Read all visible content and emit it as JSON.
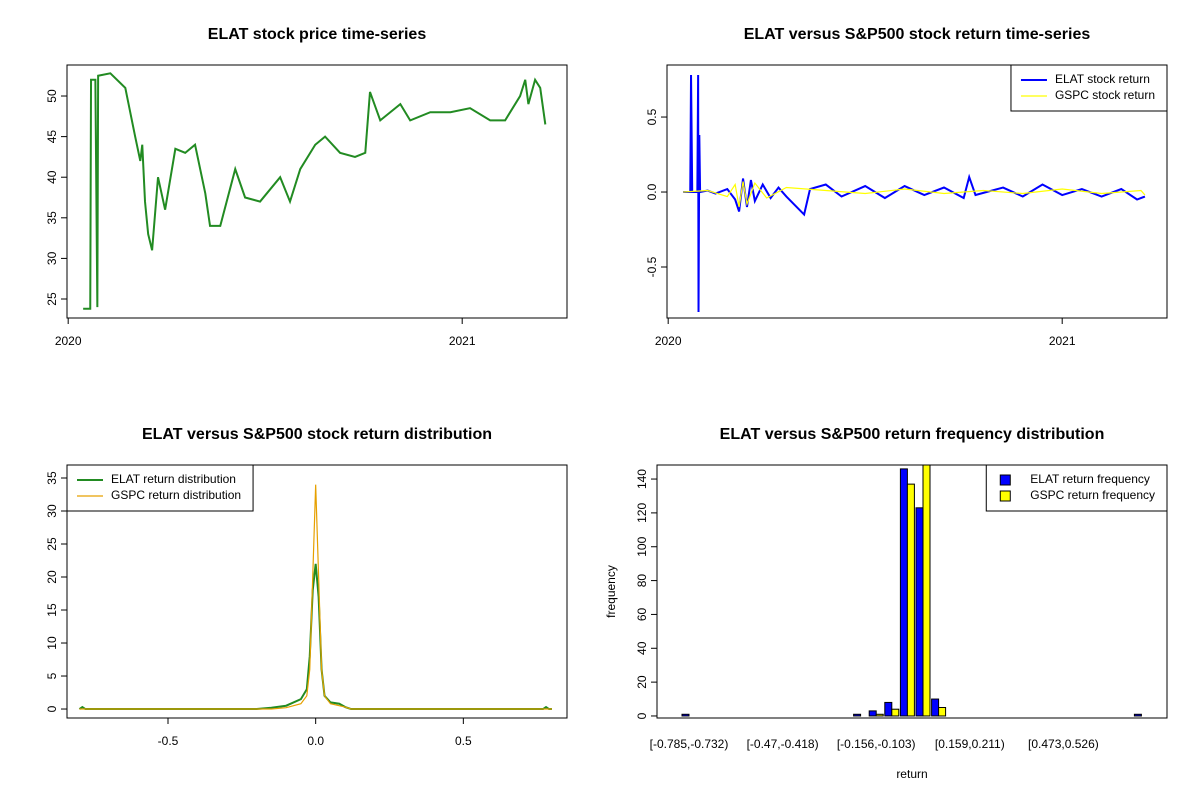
{
  "chart_data": [
    {
      "type": "line",
      "title": "ELAT stock price time-series",
      "color": "#228b22",
      "x": [
        2020.038,
        2020.056,
        2020.058,
        2020.069,
        2020.074,
        2020.076,
        2020.107,
        2020.145,
        2020.17,
        2020.183,
        2020.188,
        2020.195,
        2020.203,
        2020.213,
        2020.228,
        2020.246,
        2020.272,
        2020.297,
        2020.322,
        2020.348,
        2020.36,
        2020.386,
        2020.424,
        2020.449,
        2020.487,
        2020.538,
        2020.563,
        2020.589,
        2020.627,
        2020.652,
        2020.69,
        2020.728,
        2020.754,
        2020.766,
        2020.792,
        2020.843,
        2020.868,
        2020.919,
        2020.97,
        2021.02,
        2021.071,
        2021.109,
        2021.147,
        2021.16,
        2021.168,
        2021.185,
        2021.198,
        2021.211
      ],
      "values": [
        23.8,
        23.8,
        52,
        52,
        24,
        52.5,
        52.8,
        51,
        45,
        42,
        44,
        37,
        33,
        31,
        40,
        36,
        43.5,
        43,
        44,
        38,
        34,
        34,
        41,
        37.5,
        37,
        40,
        37,
        41,
        44,
        45,
        43,
        42.5,
        43,
        50.5,
        47,
        49,
        47,
        48,
        48,
        48.5,
        47,
        47,
        50,
        52,
        49,
        52,
        51,
        46.5
      ],
      "xlim": [
        2019.997,
        2021.266
      ],
      "xticks": [
        2020,
        2021
      ],
      "ylim": [
        22.66,
        53.82
      ],
      "yticks": [
        25,
        30,
        35,
        40,
        45,
        50
      ]
    },
    {
      "type": "line",
      "title": "ELAT versus S&P500 stock return time-series",
      "legend": "topright",
      "series": [
        {
          "name": "ELAT stock return",
          "color": "#0000ff",
          "x": [
            2020.038,
            2020.056,
            2020.058,
            2020.061,
            2020.074,
            2020.076,
            2020.077,
            2020.079,
            2020.081,
            2020.1,
            2020.12,
            2020.15,
            2020.17,
            2020.18,
            2020.19,
            2020.2,
            2020.21,
            2020.22,
            2020.24,
            2020.26,
            2020.28,
            2020.3,
            2020.345,
            2020.36,
            2020.4,
            2020.44,
            2020.5,
            2020.55,
            2020.6,
            2020.65,
            2020.7,
            2020.75,
            2020.764,
            2020.78,
            2020.85,
            2020.9,
            2020.95,
            2021.0,
            2021.05,
            2021.1,
            2021.15,
            2021.19,
            2021.21
          ],
          "values": [
            0,
            0,
            0.78,
            0,
            0,
            0.78,
            -0.8,
            0.38,
            0,
            0.01,
            -0.01,
            0.02,
            -0.05,
            -0.13,
            0.09,
            -0.1,
            0.08,
            -0.06,
            0.05,
            -0.04,
            0.03,
            -0.03,
            -0.15,
            0.02,
            0.05,
            -0.03,
            0.04,
            -0.04,
            0.04,
            -0.02,
            0.03,
            -0.04,
            0.1,
            -0.02,
            0.03,
            -0.03,
            0.05,
            -0.02,
            0.02,
            -0.03,
            0.02,
            -0.05,
            -0.03
          ]
        },
        {
          "name": "GSPC stock return",
          "color": "#ffff00",
          "x": [
            2020.038,
            2020.1,
            2020.15,
            2020.17,
            2020.18,
            2020.19,
            2020.2,
            2020.22,
            2020.25,
            2020.3,
            2020.4,
            2020.5,
            2020.6,
            2020.7,
            2020.8,
            2020.9,
            2021.0,
            2021.1,
            2021.2,
            2021.21
          ],
          "values": [
            0,
            0.01,
            -0.03,
            0.05,
            -0.1,
            0.07,
            -0.08,
            0.06,
            -0.04,
            0.03,
            0.01,
            -0.01,
            0.02,
            -0.01,
            0.01,
            -0.01,
            0.02,
            -0.01,
            0.01,
            -0.02
          ]
        }
      ],
      "xlim": [
        2019.997,
        2021.266
      ],
      "xticks": [
        2020,
        2021
      ],
      "ylim": [
        -0.84,
        0.847
      ],
      "yticks": [
        -0.5,
        {
          "value": 0,
          "label": "0.0"
        },
        0.5
      ]
    },
    {
      "type": "line",
      "title": "ELAT versus S&P500 stock return distribution",
      "legend": "topleft",
      "series": [
        {
          "name": "ELAT return distribution",
          "color": "#228b22",
          "x": [
            -0.8,
            -0.79,
            -0.78,
            -0.2,
            -0.15,
            -0.1,
            -0.05,
            -0.03,
            -0.02,
            -0.01,
            0,
            0.01,
            0.02,
            0.03,
            0.05,
            0.08,
            0.1,
            0.12,
            0.77,
            0.78,
            0.79,
            0.8
          ],
          "values": [
            0,
            0.3,
            0,
            0,
            0.2,
            0.5,
            1.5,
            3,
            8,
            18,
            22,
            17,
            6,
            2,
            1,
            0.8,
            0.3,
            0,
            0,
            0.3,
            0,
            0
          ]
        },
        {
          "name": "GSPC return distribution",
          "color": "#e6a000",
          "x": [
            -0.8,
            -0.15,
            -0.1,
            -0.05,
            -0.03,
            -0.02,
            -0.01,
            0,
            0.01,
            0.02,
            0.03,
            0.05,
            0.1,
            0.12,
            0.8
          ],
          "values": [
            0,
            0,
            0.2,
            0.8,
            2,
            6,
            20,
            34,
            20,
            6,
            2,
            0.8,
            0.3,
            0,
            0
          ]
        }
      ],
      "xlim": [
        -0.842,
        0.851
      ],
      "xticks": [
        -0.5,
        {
          "value": 0,
          "label": "0.0"
        },
        0.5
      ],
      "ylim": [
        -1.36,
        36.97
      ],
      "yticks": [
        0,
        5,
        10,
        15,
        20,
        25,
        30,
        35
      ]
    },
    {
      "type": "bar",
      "title": "ELAT versus S&P500 return frequency distribution",
      "legend": "topright",
      "x_label": "return",
      "y_label": "frequency",
      "categories": [
        "[-0.785,-0.732)",
        null,
        null,
        null,
        null,
        null,
        "[-0.47,-0.418)",
        null,
        null,
        null,
        null,
        null,
        "[-0.156,-0.103)",
        null,
        null,
        null,
        null,
        null,
        "[0.159,0.211)",
        null,
        null,
        null,
        null,
        null,
        "[0.473,0.526)",
        null,
        null,
        null,
        null,
        null
      ],
      "series": [
        {
          "name": "ELAT return frequency",
          "color": "#0000ff",
          "values": [
            1,
            0,
            0,
            0,
            0,
            0,
            0,
            0,
            0,
            0,
            0,
            1,
            3,
            8,
            146,
            123,
            10,
            0,
            0,
            0,
            0,
            0,
            0,
            0,
            0,
            0,
            0,
            0,
            0,
            1
          ]
        },
        {
          "name": "GSPC return frequency",
          "color": "#ffff00",
          "values": [
            0,
            0,
            0,
            0,
            0,
            0,
            0,
            0,
            0,
            0,
            0,
            0,
            1,
            4,
            137,
            150,
            5,
            0,
            0,
            0,
            0,
            0,
            0,
            0,
            0,
            0,
            0,
            0,
            0,
            0
          ]
        }
      ],
      "ylim": [
        -1.2,
        148.3
      ],
      "yticks": [
        0,
        20,
        40,
        60,
        80,
        100,
        120,
        140
      ]
    }
  ]
}
